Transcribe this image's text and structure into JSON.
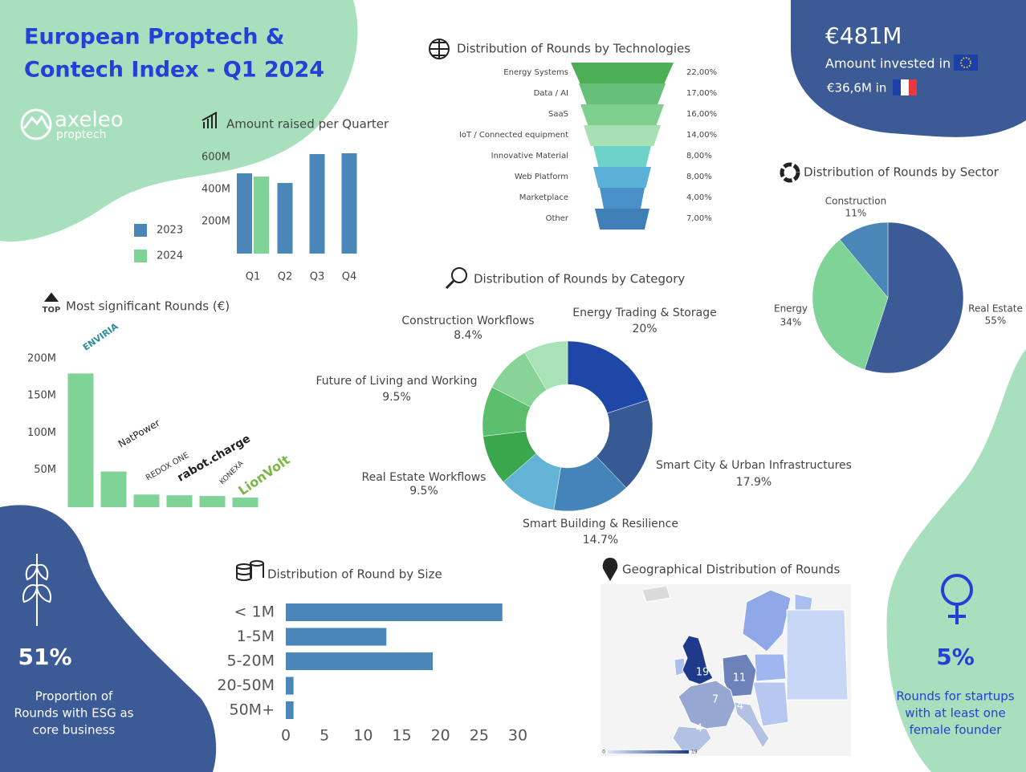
{
  "header": {
    "title_lines": [
      "European Proptech &",
      "Contech Index - Q1 2024"
    ],
    "logo": "axeleo",
    "logo_sub": "proptech"
  },
  "kpis": {
    "amount": "€481M",
    "amount_caption": "Amount invested in",
    "france": "€36,6M in",
    "esg_value": "51%",
    "esg_caption_lines": [
      "Proportion of",
      "Rounds with ESG as",
      "core business"
    ],
    "female_value": "5%",
    "female_caption_lines": [
      "Rounds for startups",
      "with at least one",
      "female founder"
    ]
  },
  "chart_data": [
    {
      "type": "bar",
      "title": "Amount raised per Quarter",
      "categories": [
        "Q1",
        "Q2",
        "Q3",
        "Q4"
      ],
      "series": [
        {
          "name": "2023",
          "color": "#4a86b8",
          "values": [
            500,
            440,
            620,
            625
          ]
        },
        {
          "name": "2024",
          "color": "#7fd396",
          "values": [
            480,
            null,
            null,
            null
          ]
        }
      ],
      "ylim": [
        0,
        650
      ],
      "yticks": [
        {
          "value": 200,
          "label": "200M"
        },
        {
          "value": 400,
          "label": "400M"
        },
        {
          "value": 600,
          "label": "600M"
        }
      ],
      "legend": "left"
    },
    {
      "type": "funnel",
      "title": "Distribution of Rounds by Technologies",
      "categories": [
        "Energy Systems",
        "Data / AI",
        "SaaS",
        "IoT / Connected equipment",
        "Innovative Material",
        "Web Platform",
        "Marketplace",
        "Other"
      ],
      "values": [
        22,
        17,
        16,
        14,
        8,
        8,
        4,
        7
      ],
      "value_labels": [
        "22,00%",
        "17,00%",
        "16,00%",
        "14,00%",
        "8,00%",
        "8,00%",
        "4,00%",
        "7,00%"
      ],
      "colors": [
        "#4caf55",
        "#66c07a",
        "#7fcf8f",
        "#a6e0b3",
        "#6fd2c8",
        "#5ab0d6",
        "#4a90c8",
        "#3f7fb5"
      ]
    },
    {
      "type": "pie",
      "title": "Distribution of Rounds by Sector",
      "categories": [
        "Real Estate",
        "Energy",
        "Construction"
      ],
      "values": [
        55,
        34,
        11
      ],
      "value_labels": [
        "55%",
        "34%",
        "11%"
      ],
      "colors": [
        "#3b5a96",
        "#7fd396",
        "#4a86b8"
      ]
    },
    {
      "type": "donut",
      "title": "Distribution of Rounds by Category",
      "categories": [
        "Energy Trading & Storage",
        "Smart City & Urban Infrastructures",
        "Smart Building & Resilience",
        null,
        "Real Estate Workflows",
        "Future of Living and Working",
        null,
        "Construction Workflows"
      ],
      "values": [
        20,
        17.9,
        14.7,
        11,
        9.5,
        9.5,
        9,
        8.4
      ],
      "value_labels": [
        "20%",
        "17.9%",
        "14.7%",
        null,
        "9.5%",
        "9.5%",
        null,
        "8.4%"
      ],
      "colors": [
        "#1f47a8",
        "#375a94",
        "#4584b8",
        "#63b3d6",
        "#3aa74d",
        "#5cbf6e",
        "#88d497",
        "#a8e2b6"
      ]
    },
    {
      "type": "bar",
      "title": "Most significant Rounds (€)",
      "badge": "TOP",
      "categories": [
        "ENVIRIA",
        "NatPower",
        "REDOX ONE",
        "rabot.charge",
        "KONEXA",
        "LionVolt"
      ],
      "values": [
        180,
        48,
        17,
        16,
        15,
        13
      ],
      "color": "#7fd396",
      "ylim": [
        0,
        215
      ],
      "yticks": [
        {
          "value": 50,
          "label": "50M"
        },
        {
          "value": 100,
          "label": "100M"
        },
        {
          "value": 150,
          "label": "150M"
        },
        {
          "value": 200,
          "label": "200M"
        }
      ]
    },
    {
      "type": "hbar",
      "title": "Distribution of Round by Size",
      "categories": [
        "< 1M",
        "1-5M",
        "5-20M",
        "20-50M",
        "50M+"
      ],
      "values": [
        28,
        13,
        19,
        1,
        1
      ],
      "color": "#4a86b8",
      "xlim": [
        0,
        30
      ],
      "xticks": [
        0,
        5,
        10,
        15,
        20,
        25,
        30
      ]
    },
    {
      "type": "map",
      "title": "Geographical Distribution of Rounds",
      "values": [
        19,
        11,
        7,
        4,
        4
      ],
      "clim": [
        0,
        19
      ],
      "cticks": [
        0,
        19
      ],
      "colors": [
        "#dbe6fb",
        "#1f3a8a"
      ]
    }
  ]
}
